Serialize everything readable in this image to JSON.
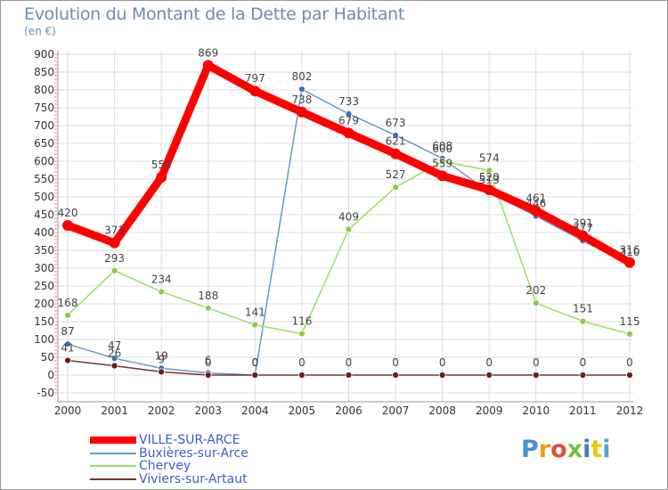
{
  "header": {
    "title": "Evolution du Montant de la Dette par Habitant",
    "subtitle": "(en €)"
  },
  "colors": {
    "title": "#6a8db5",
    "grid": "#dddddd",
    "axis": "#333333",
    "legend_text": "#3a5fcd"
  },
  "chart_data": {
    "type": "line",
    "title": "Evolution du Montant de la Dette par Habitant",
    "ylabel": "(en €)",
    "xlabel": "",
    "x": [
      "2000",
      "2001",
      "2002",
      "2003",
      "2004",
      "2005",
      "2006",
      "2007",
      "2008",
      "2009",
      "2010",
      "2011",
      "2012"
    ],
    "ylim": [
      -50,
      900
    ],
    "yticks": [
      "-50",
      "0",
      "50",
      "100",
      "150",
      "200",
      "250",
      "300",
      "350",
      "400",
      "450",
      "500",
      "550",
      "600",
      "650",
      "700",
      "750",
      "800",
      "850",
      "900"
    ],
    "grid": true,
    "legend_position": "bottom-left",
    "series": [
      {
        "name": "Buxières-sur-Arce",
        "color": "#6699cc",
        "marker": "#3b6fb6",
        "values": [
          87,
          47,
          19,
          6,
          0,
          802,
          733,
          673,
          608,
          513,
          446,
          377,
          310
        ],
        "labels": [
          "87",
          "47",
          "19",
          "6",
          "0",
          "802",
          "733",
          "673",
          "608",
          "513",
          "446",
          "377",
          "310"
        ]
      },
      {
        "name": "Chervey",
        "color": "#99dd66",
        "marker": "#88cc44",
        "values": [
          168,
          293,
          234,
          188,
          141,
          116,
          409,
          527,
          600,
          574,
          202,
          151,
          115
        ],
        "labels": [
          "168",
          "293",
          "234",
          "188",
          "141",
          "116",
          "409",
          "527",
          "600",
          "574",
          "202",
          "151",
          "115"
        ]
      },
      {
        "name": "Viviers-sur-Artaut",
        "color": "#773333",
        "marker": "#6b1e1e",
        "values": [
          41,
          26,
          9,
          0,
          0,
          0,
          0,
          0,
          0,
          0,
          0,
          0,
          0
        ],
        "labels": [
          "41",
          "26",
          "9",
          "0",
          "0",
          "0",
          "0",
          "0",
          "0",
          "0",
          "0",
          "0",
          "0"
        ]
      },
      {
        "name": "VILLE-SUR-ARCE",
        "color": "#ff0000",
        "marker": "#ff0000",
        "thick": true,
        "values": [
          420,
          371,
          555,
          869,
          797,
          738,
          679,
          621,
          559,
          520,
          461,
          391,
          316
        ],
        "labels": [
          "420",
          "371",
          "555",
          "869",
          "797",
          "738",
          "679",
          "621",
          "559",
          "520",
          "461",
          "391",
          "316"
        ]
      }
    ]
  },
  "legend": {
    "items": [
      {
        "label": "VILLE-SUR-ARCE",
        "color": "#ff0000"
      },
      {
        "label": "Buxières-sur-Arce",
        "color": "#6699cc"
      },
      {
        "label": "Chervey",
        "color": "#99dd66"
      },
      {
        "label": "Viviers-sur-Artaut",
        "color": "#773333"
      }
    ]
  },
  "logo": {
    "letters": [
      "P",
      "r",
      "o",
      "x",
      "i",
      "t",
      "i"
    ],
    "colors": [
      "#4a90d9",
      "#f39c12",
      "#e74c3c",
      "#7cbd3b",
      "#3b82c4",
      "#f1c40f",
      "#4aa3df"
    ]
  }
}
